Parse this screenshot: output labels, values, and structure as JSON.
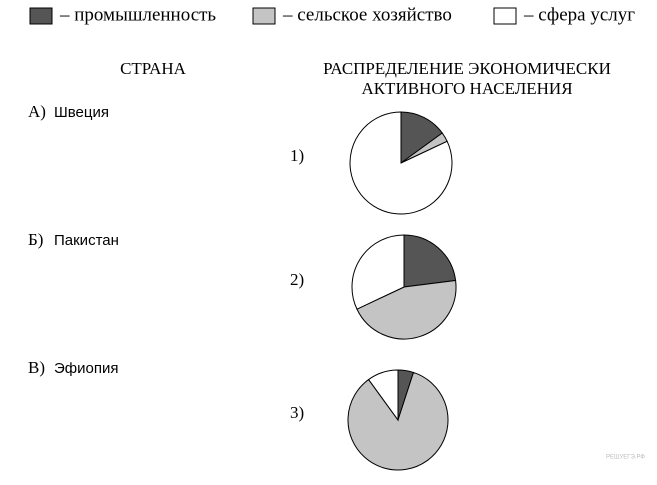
{
  "legend": [
    {
      "label": "– промышленность",
      "color": "#555555"
    },
    {
      "label": "– сельское хозяйство",
      "color": "#c4c4c4"
    },
    {
      "label": "– сфера услуг",
      "color": "#ffffff"
    }
  ],
  "headers": {
    "country": "СТРАНА",
    "distribution": [
      "РАСПРЕДЕЛЕНИЕ ЭКОНОМИЧЕСКИ",
      "АКТИВНОГО НАСЕЛЕНИЯ"
    ]
  },
  "countries": [
    {
      "letter": "А)",
      "name": "Швеция"
    },
    {
      "letter": "Б)",
      "name": "Пакистан"
    },
    {
      "letter": "В)",
      "name": "Эфиопия"
    }
  ],
  "charts": [
    {
      "label": "1)",
      "values": [
        15,
        3,
        82
      ]
    },
    {
      "label": "2)",
      "values": [
        23,
        45,
        32
      ]
    },
    {
      "label": "3)",
      "values": [
        5,
        85,
        10
      ]
    }
  ],
  "watermark": "РЕШУЕГЭ.РФ"
}
